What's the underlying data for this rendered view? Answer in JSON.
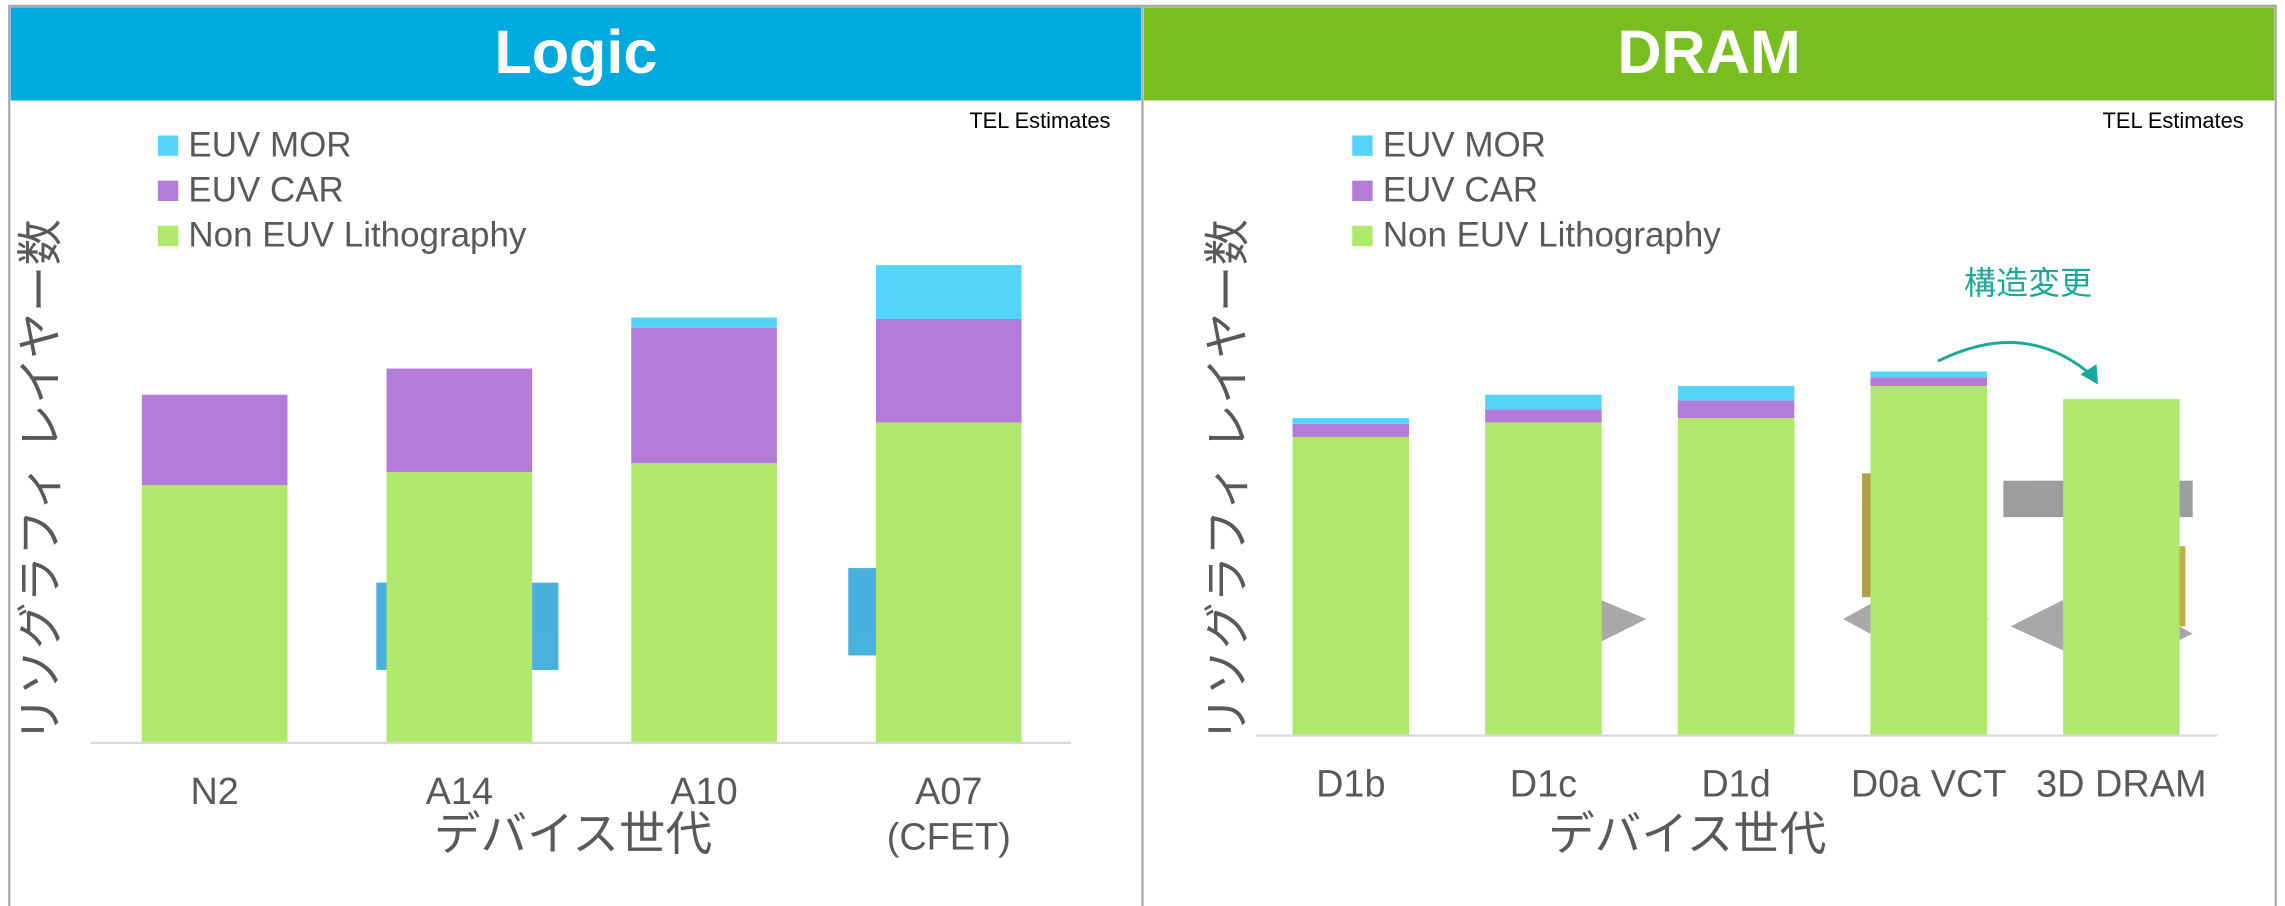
{
  "chart_data": [
    {
      "type": "bar",
      "stacked": true,
      "title": "Logic",
      "note": "TEL Estimates",
      "y_label": "リソグラフィ レイヤー数",
      "x_label": "デバイス世代",
      "categories": [
        "N2",
        "A14",
        "A10",
        "A07\n(CFET)"
      ],
      "ylim": [
        0,
        340
      ],
      "header_color": "#00a9e0",
      "series": [
        {
          "name": "EUV MOR",
          "color": "#55d4fa",
          "values": [
            0,
            0,
            7,
            37
          ]
        },
        {
          "name": "EUV CAR",
          "color": "#b57bd8",
          "values": [
            62,
            71,
            93,
            71
          ]
        },
        {
          "name": "Non EUV Lithography",
          "color": "#b0e86c",
          "values": [
            177,
            186,
            192,
            220
          ]
        }
      ]
    },
    {
      "type": "bar",
      "stacked": true,
      "title": "DRAM",
      "note": "TEL Estimates",
      "y_label": "リソグラフィ レイヤー数",
      "x_label": "デバイス世代",
      "categories": [
        "D1b",
        "D1c",
        "D1d",
        "D0a VCT",
        "3D DRAM"
      ],
      "ylim": [
        0,
        335
      ],
      "header_color": "#78be20",
      "annotation": "構造変更",
      "series": [
        {
          "name": "EUV MOR",
          "color": "#55d4fa",
          "values": [
            4,
            10,
            10,
            4,
            0
          ]
        },
        {
          "name": "EUV CAR",
          "color": "#b57bd8",
          "values": [
            9,
            9,
            12,
            6,
            0
          ]
        },
        {
          "name": "Non EUV Lithography",
          "color": "#b0e86c",
          "values": [
            205,
            215,
            218,
            240,
            231
          ]
        }
      ]
    }
  ]
}
